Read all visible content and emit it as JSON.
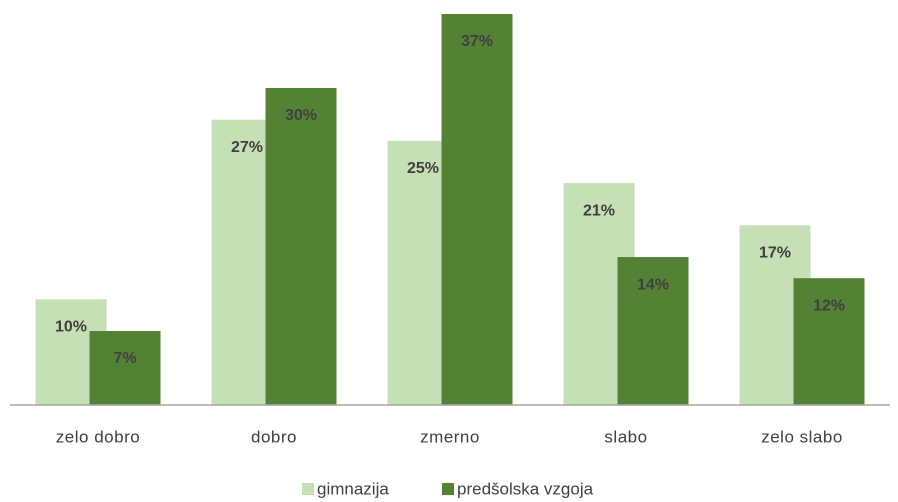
{
  "chart_data": {
    "type": "bar",
    "categories": [
      "zelo dobro",
      "dobro",
      "zmerno",
      "slabo",
      "zelo slabo"
    ],
    "series": [
      {
        "name": "gimnazija",
        "color": "#c5e0b4",
        "values": [
          10,
          27,
          25,
          21,
          17
        ],
        "value_labels": [
          "10%",
          "27%",
          "25%",
          "21%",
          "17%"
        ]
      },
      {
        "name": "predšolska vzgoja",
        "color": "#548235",
        "values": [
          7,
          30,
          37,
          14,
          12
        ],
        "value_labels": [
          "7%",
          "30%",
          "37%",
          "14%",
          "12%"
        ]
      }
    ],
    "legend": "bottom"
  }
}
